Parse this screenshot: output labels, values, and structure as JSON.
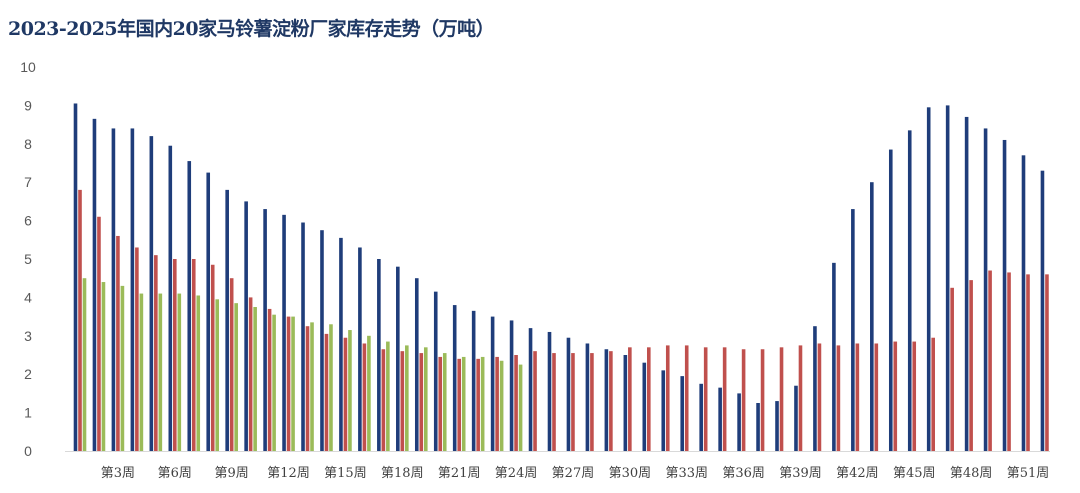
{
  "chart_data": {
    "type": "bar",
    "title": "2023-2025年国内20家马铃薯淀粉厂家库存走势（万吨）",
    "xlabel": "",
    "ylabel": "",
    "ylim": [
      0,
      10
    ],
    "yticks": [
      "0",
      "1",
      "2",
      "3",
      "4",
      "5",
      "6",
      "7",
      "8",
      "9",
      "10"
    ],
    "week_count": 52,
    "xtick_labels": [
      "第3周",
      "第6周",
      "第9周",
      "第12周",
      "第15周",
      "第18周",
      "第21周",
      "第24周",
      "第27周",
      "第30周",
      "第33周",
      "第36周",
      "第39周",
      "第42周",
      "第45周",
      "第48周",
      "第51周"
    ],
    "xtick_weeks": [
      3,
      6,
      9,
      12,
      15,
      18,
      21,
      24,
      27,
      30,
      33,
      36,
      39,
      42,
      45,
      48,
      51
    ],
    "grid": false,
    "series": [
      {
        "color": "#1f3d7a",
        "values": [
          9.05,
          8.65,
          8.4,
          8.4,
          8.2,
          7.95,
          7.55,
          7.25,
          6.8,
          6.5,
          6.3,
          6.15,
          5.95,
          5.75,
          5.55,
          5.3,
          5.0,
          4.8,
          4.5,
          4.15,
          3.8,
          3.65,
          3.5,
          3.4,
          3.2,
          3.1,
          2.95,
          2.8,
          2.65,
          2.5,
          2.3,
          2.1,
          1.95,
          1.75,
          1.65,
          1.5,
          1.25,
          1.3,
          1.7,
          3.25,
          4.9,
          6.3,
          7.0,
          7.85,
          8.35,
          8.95,
          9.0,
          8.7,
          8.4,
          8.1,
          7.7,
          7.3
        ]
      },
      {
        "color": "#c0504d",
        "values": [
          6.8,
          6.1,
          5.6,
          5.3,
          5.1,
          5.0,
          5.0,
          4.85,
          4.5,
          4.0,
          3.7,
          3.5,
          3.25,
          3.05,
          2.95,
          2.8,
          2.65,
          2.6,
          2.55,
          2.45,
          2.4,
          2.4,
          2.45,
          2.5,
          2.6,
          2.55,
          2.55,
          2.55,
          2.6,
          2.7,
          2.7,
          2.75,
          2.75,
          2.7,
          2.7,
          2.65,
          2.65,
          2.7,
          2.75,
          2.8,
          2.75,
          2.8,
          2.8,
          2.85,
          2.85,
          2.95,
          4.25,
          4.45,
          4.7,
          4.65,
          4.6,
          4.6
        ]
      },
      {
        "color": "#9bbb59",
        "values": [
          4.5,
          4.4,
          4.3,
          4.1,
          4.1,
          4.1,
          4.05,
          3.95,
          3.85,
          3.75,
          3.55,
          3.5,
          3.35,
          3.3,
          3.15,
          3.0,
          2.85,
          2.75,
          2.7,
          2.55,
          2.45,
          2.45,
          2.35,
          2.25
        ]
      }
    ]
  }
}
